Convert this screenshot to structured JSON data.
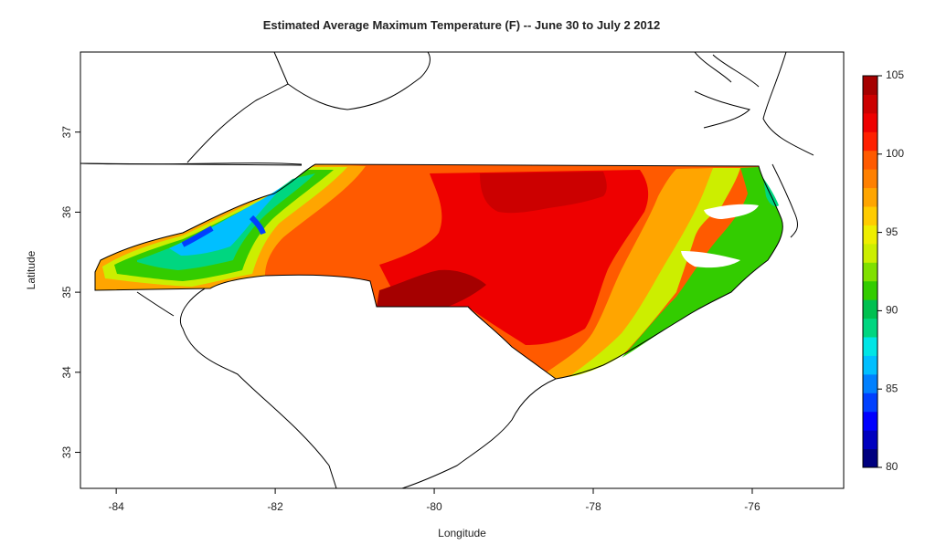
{
  "title": "Estimated Average Maximum Temperature (F) -- June 30 to July 2 2012",
  "xlabel": "Longitude",
  "ylabel": "Latitude",
  "x_ticks": [
    {
      "value": -84,
      "label": "-84"
    },
    {
      "value": -82,
      "label": "-82"
    },
    {
      "value": -80,
      "label": "-80"
    },
    {
      "value": -78,
      "label": "-78"
    },
    {
      "value": -76,
      "label": "-76"
    }
  ],
  "y_ticks": [
    {
      "value": 33,
      "label": "33"
    },
    {
      "value": 34,
      "label": "34"
    },
    {
      "value": 35,
      "label": "35"
    },
    {
      "value": 36,
      "label": "36"
    },
    {
      "value": 37,
      "label": "37"
    }
  ],
  "xlim": [
    -84.45,
    -74.85
  ],
  "ylim": [
    32.55,
    38.0
  ],
  "colorbar": {
    "min": 80,
    "max": 105,
    "ticks": [
      {
        "value": 80,
        "label": "80"
      },
      {
        "value": 85,
        "label": "85"
      },
      {
        "value": 90,
        "label": "90"
      },
      {
        "value": 95,
        "label": "95"
      },
      {
        "value": 100,
        "label": "100"
      },
      {
        "value": 105,
        "label": "105"
      }
    ],
    "colors": [
      "#00007f",
      "#0000bf",
      "#0000ff",
      "#0040ff",
      "#0080ff",
      "#00bfff",
      "#00e5e5",
      "#00d680",
      "#00c050",
      "#33cc00",
      "#80e000",
      "#ccee00",
      "#eeee00",
      "#ffcc00",
      "#ffa500",
      "#ff8000",
      "#ff5a00",
      "#ff2000",
      "#ee0000",
      "#cc0000",
      "#a50000"
    ]
  }
}
